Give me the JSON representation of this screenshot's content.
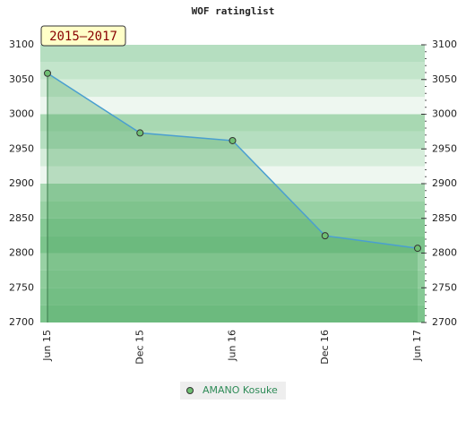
{
  "chart_data": {
    "type": "line",
    "title": "WOF ratinglist",
    "badge": "2015–2017",
    "categories": [
      "Jun 15",
      "Dec 15",
      "Jun 16",
      "Dec 16",
      "Jun 17"
    ],
    "series": [
      {
        "name": "AMANO Kosuke",
        "color": "#4a9fd0",
        "values": [
          3059,
          2973,
          2962,
          2825,
          2807
        ]
      }
    ],
    "ylim": [
      2700,
      3100
    ],
    "yticks": [
      2700,
      2750,
      2800,
      2850,
      2900,
      2950,
      3000,
      3050,
      3100
    ]
  }
}
